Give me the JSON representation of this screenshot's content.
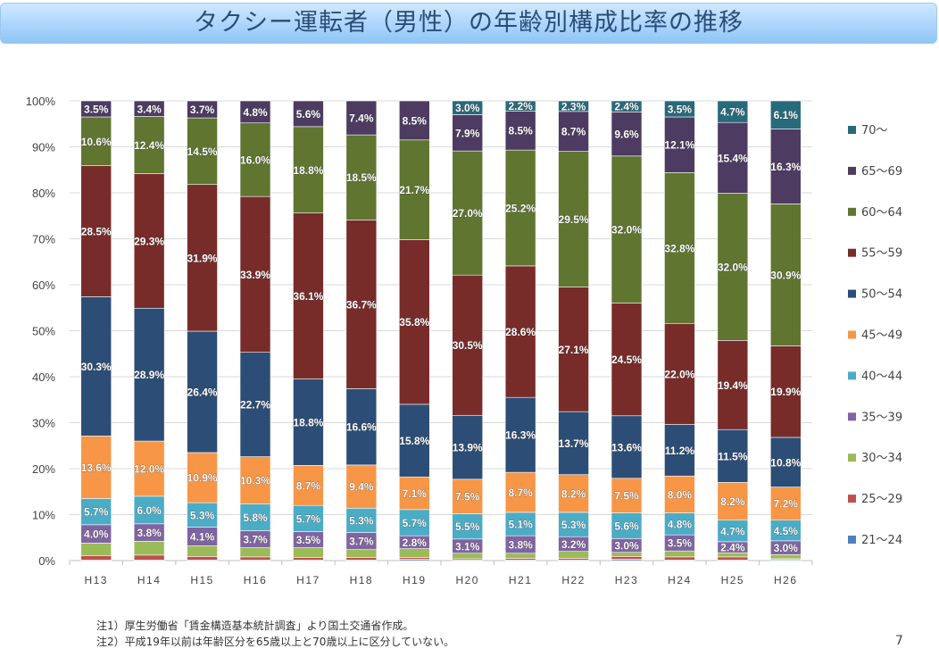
{
  "title": "タクシー運転者（男性）の年齢別構成比率の推移",
  "notes": [
    "注1）厚生労働省「賃金構造基本統計調査」より国土交通省作成。",
    "注2）平成19年以前は年齢区分を65歳以上と70歳以上に区分していない。"
  ],
  "page_number": "7",
  "chart_data": {
    "type": "bar",
    "stacked": true,
    "percent": true,
    "categories": [
      "H13",
      "H14",
      "H15",
      "H16",
      "H17",
      "H18",
      "H19",
      "H20",
      "H21",
      "H22",
      "H23",
      "H24",
      "H25",
      "H26"
    ],
    "ylim": [
      0,
      100
    ],
    "yticks": [
      "0%",
      "10%",
      "20%",
      "30%",
      "40%",
      "50%",
      "60%",
      "70%",
      "80%",
      "90%",
      "100%"
    ],
    "grid": true,
    "legend_position": "right",
    "series": [
      {
        "name": "21～24",
        "color": "#4f81bd",
        "values": [
          0.1,
          0.1,
          0.1,
          0.1,
          0.1,
          0.1,
          0.3,
          0.1,
          0.1,
          0.1,
          0.3,
          0.1,
          0.1,
          0.2
        ],
        "labeled": false
      },
      {
        "name": "25～29",
        "color": "#c0504d",
        "values": [
          1.0,
          1.1,
          0.8,
          0.7,
          0.6,
          0.6,
          0.4,
          0.3,
          0.4,
          0.4,
          0.6,
          0.7,
          0.7,
          0.2
        ],
        "labeled": false
      },
      {
        "name": "30～34",
        "color": "#9bbb59",
        "values": [
          2.7,
          3.0,
          2.3,
          2.0,
          2.1,
          1.7,
          1.9,
          1.2,
          1.1,
          1.5,
          0.9,
          1.3,
          0.9,
          0.9
        ],
        "labeled": false
      },
      {
        "name": "35～39",
        "color": "#8064a2",
        "values": [
          4.0,
          3.8,
          4.1,
          3.7,
          3.5,
          3.7,
          2.8,
          3.1,
          3.8,
          3.2,
          3.0,
          3.5,
          2.4,
          3.0
        ],
        "labeled": true
      },
      {
        "name": "40～44",
        "color": "#4bacc6",
        "values": [
          5.7,
          6.0,
          5.3,
          5.8,
          5.7,
          5.3,
          5.7,
          5.5,
          5.1,
          5.3,
          5.6,
          4.8,
          4.7,
          4.5
        ],
        "labeled": true
      },
      {
        "name": "45～49",
        "color": "#f79646",
        "values": [
          13.6,
          12.0,
          10.9,
          10.3,
          8.7,
          9.4,
          7.1,
          7.5,
          8.7,
          8.2,
          7.5,
          8.0,
          8.2,
          7.2
        ],
        "labeled": true
      },
      {
        "name": "50～54",
        "color": "#2c4d75",
        "values": [
          30.3,
          28.9,
          26.4,
          22.7,
          18.8,
          16.6,
          15.8,
          13.9,
          16.3,
          13.7,
          13.6,
          11.2,
          11.5,
          10.8
        ],
        "labeled": true
      },
      {
        "name": "55～59",
        "color": "#772c2a",
        "values": [
          28.5,
          29.3,
          31.9,
          33.9,
          36.1,
          36.7,
          35.8,
          30.5,
          28.6,
          27.1,
          24.5,
          22.0,
          19.4,
          19.9
        ],
        "labeled": true
      },
      {
        "name": "60～64",
        "color": "#5f7530",
        "values": [
          10.6,
          12.4,
          14.5,
          16.0,
          18.8,
          18.5,
          21.7,
          27.0,
          25.2,
          29.5,
          32.0,
          32.8,
          32.0,
          30.9
        ],
        "labeled": true
      },
      {
        "name": "65～69",
        "color": "#4d3b62",
        "values": [
          3.5,
          3.4,
          3.7,
          4.8,
          5.6,
          7.4,
          8.5,
          7.9,
          8.5,
          8.7,
          9.6,
          12.1,
          15.4,
          16.3
        ],
        "labeled": true
      },
      {
        "name": "70～",
        "color": "#276a7c",
        "values": [
          null,
          null,
          null,
          null,
          null,
          null,
          null,
          3.0,
          2.2,
          2.3,
          2.4,
          3.5,
          4.7,
          6.1
        ],
        "labeled": true
      }
    ]
  }
}
